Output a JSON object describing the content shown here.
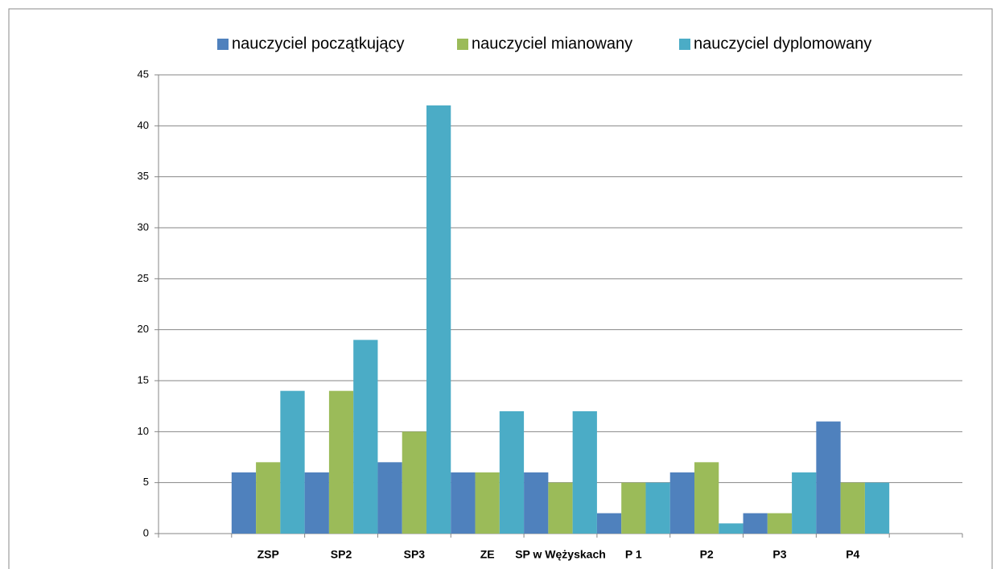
{
  "chart_data": {
    "type": "bar",
    "categories": [
      null,
      "ZSP",
      "SP2",
      "SP3",
      "ZE",
      "SP w Wężyskach",
      "P 1",
      "P2",
      "P3",
      "P4",
      null
    ],
    "series": [
      {
        "name": "nauczyciel początkujący",
        "color": "#4f81bd",
        "values": [
          null,
          6,
          6,
          7,
          6,
          6,
          2,
          6,
          2,
          11,
          null
        ]
      },
      {
        "name": "nauczyciel mianowany",
        "color": "#9bbb59",
        "values": [
          null,
          7,
          14,
          10,
          6,
          5,
          5,
          7,
          2,
          5,
          null
        ]
      },
      {
        "name": "nauczyciel dyplomowany",
        "color": "#4bacc6",
        "values": [
          null,
          14,
          19,
          42,
          12,
          12,
          5,
          1,
          6,
          5,
          null
        ]
      }
    ],
    "ylim": [
      0,
      45
    ],
    "yticks": [
      0,
      5,
      10,
      15,
      20,
      25,
      30,
      35,
      40,
      45
    ],
    "grid": true,
    "legend": "top"
  }
}
